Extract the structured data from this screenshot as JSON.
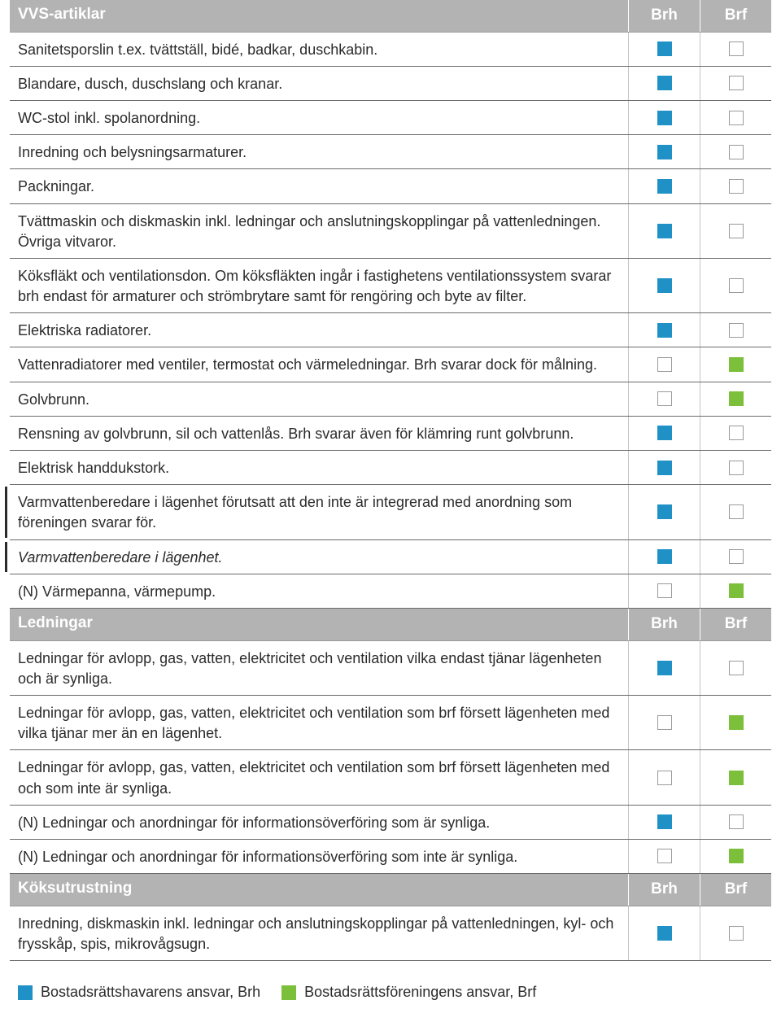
{
  "colors": {
    "header_bg": "#b3b3b3",
    "header_text": "#ffffff",
    "row_border": "#6b6b6b",
    "col_divider": "#c5c5c5",
    "box_border_empty": "#9a9a9a",
    "brh_fill": "#1f91c6",
    "brf_fill": "#7bbf3a",
    "text": "#2b2b2b",
    "background": "#ffffff"
  },
  "columns": {
    "brh": "Brh",
    "brf": "Brf"
  },
  "sections": [
    {
      "title": "VVS-artiklar",
      "rows": [
        {
          "text": "Sanitetsporslin t.ex. tvättställ, bidé, badkar, duschkabin.",
          "brh": true,
          "brf": false
        },
        {
          "text": "Blandare, dusch, duschslang och kranar.",
          "brh": true,
          "brf": false
        },
        {
          "text": "WC-stol inkl. spolanordning.",
          "brh": true,
          "brf": false
        },
        {
          "text": "Inredning och belysningsarmaturer.",
          "brh": true,
          "brf": false
        },
        {
          "text": "Packningar.",
          "brh": true,
          "brf": false
        },
        {
          "text": "Tvättmaskin och diskmaskin inkl. ledningar och anslutningskopplingar på vattenledningen. Övriga vitvaror.",
          "brh": true,
          "brf": false
        },
        {
          "text": "Köksfläkt och ventilationsdon. Om köksfläkten ingår i fastighetens ventilationssystem svarar brh endast för armaturer och strömbrytare samt för rengöring och byte av filter.",
          "brh": true,
          "brf": false
        },
        {
          "text": "Elektriska radiatorer.",
          "brh": true,
          "brf": false
        },
        {
          "text": "Vattenradiatorer med ventiler, termostat och värmeledningar. Brh svarar dock för målning.",
          "brh": false,
          "brf": true
        },
        {
          "text": "Golvbrunn.",
          "brh": false,
          "brf": true
        },
        {
          "text": "Rensning av golvbrunn, sil och vattenlås. Brh svarar även för klämring runt golvbrunn.",
          "brh": true,
          "brf": false
        },
        {
          "text": "Elektrisk handdukstork.",
          "brh": true,
          "brf": false
        },
        {
          "text": "Varmvattenberedare i lägenhet förutsatt att den inte är integrerad med anordning som föreningen svarar för.",
          "brh": true,
          "brf": false,
          "bracket": true
        },
        {
          "text": "Varmvattenberedare i lägenhet.",
          "brh": true,
          "brf": false,
          "italic": true,
          "bracket": true
        },
        {
          "text": "(N) Värmepanna, värmepump.",
          "brh": false,
          "brf": true
        }
      ]
    },
    {
      "title": "Ledningar",
      "rows": [
        {
          "text": "Ledningar för avlopp, gas, vatten, elektricitet och ventilation vilka endast tjänar lägenheten och är synliga.",
          "brh": true,
          "brf": false
        },
        {
          "text": "Ledningar för avlopp, gas, vatten, elektricitet och ventilation som brf försett lägenheten med vilka tjänar mer än en lägenhet.",
          "brh": false,
          "brf": true
        },
        {
          "text": "Ledningar för avlopp, gas, vatten, elektricitet och ventilation som brf försett lägenheten med och som inte är synliga.",
          "brh": false,
          "brf": true
        },
        {
          "text": "(N) Ledningar och anordningar för informationsöverföring som är synliga.",
          "brh": true,
          "brf": false
        },
        {
          "text": "(N) Ledningar och anordningar för informationsöverföring som inte är synliga.",
          "brh": false,
          "brf": true
        }
      ]
    },
    {
      "title": "Köksutrustning",
      "rows": [
        {
          "text": "Inredning, diskmaskin inkl. ledningar och anslutningskopplingar på vattenledningen, kyl- och frysskåp, spis, mikrovågsugn.",
          "brh": true,
          "brf": false
        }
      ]
    }
  ],
  "legend": {
    "brh": "Bostadsrättshavarens ansvar, Brh",
    "brf": "Bostadsrättsföreningens ansvar, Brf"
  }
}
